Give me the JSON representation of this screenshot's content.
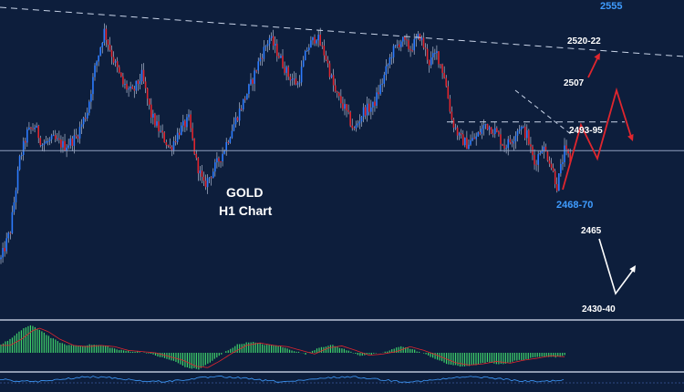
{
  "chart_data": {
    "type": "candlestick",
    "instrument": "GOLD",
    "timeframe": "H1 Chart",
    "colors": {
      "background": "#0d1e3c",
      "bull": "#2d7cff",
      "bear": "#e0262e",
      "wick": "#c9d4e8",
      "level_line": "#8f9fbf",
      "projection_red": "#e0262e",
      "projection_white": "#ffffff",
      "macd_hist": "#3fd36a",
      "label_blue": "#3f9cff",
      "label_white": "#ffffff"
    },
    "y_range": [
      2420,
      2560
    ],
    "close_path": [
      [
        0,
        2445
      ],
      [
        5,
        2458
      ],
      [
        10,
        2490
      ],
      [
        14,
        2502
      ],
      [
        18,
        2505
      ],
      [
        22,
        2497
      ],
      [
        28,
        2499
      ],
      [
        34,
        2496
      ],
      [
        40,
        2500
      ],
      [
        46,
        2512
      ],
      [
        50,
        2531
      ],
      [
        55,
        2548
      ],
      [
        60,
        2535
      ],
      [
        65,
        2524
      ],
      [
        70,
        2520
      ],
      [
        75,
        2528
      ],
      [
        80,
        2510
      ],
      [
        85,
        2502
      ],
      [
        90,
        2495
      ],
      [
        95,
        2503
      ],
      [
        100,
        2508
      ],
      [
        104,
        2489
      ],
      [
        108,
        2478
      ],
      [
        113,
        2485
      ],
      [
        118,
        2493
      ],
      [
        123,
        2504
      ],
      [
        128,
        2514
      ],
      [
        133,
        2524
      ],
      [
        138,
        2536
      ],
      [
        143,
        2545
      ],
      [
        148,
        2537
      ],
      [
        153,
        2528
      ],
      [
        158,
        2524
      ],
      [
        163,
        2540
      ],
      [
        168,
        2546
      ],
      [
        173,
        2536
      ],
      [
        178,
        2520
      ],
      [
        183,
        2513
      ],
      [
        188,
        2503
      ],
      [
        193,
        2512
      ],
      [
        198,
        2514
      ],
      [
        203,
        2525
      ],
      [
        208,
        2538
      ],
      [
        213,
        2544
      ],
      [
        218,
        2540
      ],
      [
        223,
        2546
      ],
      [
        228,
        2534
      ],
      [
        232,
        2538
      ],
      [
        236,
        2528
      ],
      [
        240,
        2508
      ],
      [
        244,
        2500
      ],
      [
        248,
        2497
      ],
      [
        253,
        2500
      ],
      [
        258,
        2506
      ],
      [
        263,
        2503
      ],
      [
        268,
        2496
      ],
      [
        272,
        2499
      ],
      [
        276,
        2505
      ],
      [
        280,
        2501
      ],
      [
        284,
        2488
      ],
      [
        288,
        2496
      ],
      [
        292,
        2490
      ],
      [
        296,
        2478
      ],
      [
        300,
        2494
      ],
      [
        303,
        2490
      ]
    ],
    "macd_hist": [
      [
        0,
        0.3
      ],
      [
        5,
        0.55
      ],
      [
        10,
        0.9
      ],
      [
        13,
        1.0
      ],
      [
        17,
        0.85
      ],
      [
        22,
        0.55
      ],
      [
        28,
        0.3
      ],
      [
        34,
        0.25
      ],
      [
        40,
        0.3
      ],
      [
        46,
        0.25
      ],
      [
        52,
        0.1
      ],
      [
        58,
        0.05
      ],
      [
        64,
        0.0
      ],
      [
        70,
        -0.15
      ],
      [
        76,
        -0.3
      ],
      [
        82,
        -0.55
      ],
      [
        87,
        -0.6
      ],
      [
        92,
        -0.35
      ],
      [
        98,
        0.0
      ],
      [
        104,
        0.3
      ],
      [
        110,
        0.4
      ],
      [
        116,
        0.3
      ],
      [
        122,
        0.25
      ],
      [
        128,
        0.1
      ],
      [
        134,
        -0.05
      ],
      [
        140,
        0.2
      ],
      [
        146,
        0.28
      ],
      [
        152,
        0.1
      ],
      [
        158,
        -0.1
      ],
      [
        164,
        -0.05
      ],
      [
        170,
        0.05
      ],
      [
        176,
        0.25
      ],
      [
        182,
        0.1
      ],
      [
        188,
        -0.1
      ],
      [
        196,
        -0.4
      ],
      [
        202,
        -0.5
      ],
      [
        208,
        -0.45
      ],
      [
        214,
        -0.35
      ],
      [
        220,
        -0.42
      ],
      [
        226,
        -0.3
      ],
      [
        232,
        -0.22
      ],
      [
        238,
        -0.12
      ],
      [
        244,
        -0.16
      ],
      [
        248,
        -0.1
      ]
    ],
    "levels": [
      {
        "label": "2555",
        "value": 2555,
        "style": "none",
        "color": "blue"
      },
      {
        "label": "2520-22",
        "value": 2521,
        "style": "trend-dashed",
        "color": "white"
      },
      {
        "label": "2507",
        "value": 2507,
        "style": "dashed",
        "color": "white"
      },
      {
        "label": "2493-95",
        "value": 2494,
        "style": "solid",
        "color": "white"
      },
      {
        "label": "2468-70",
        "value": 2469,
        "style": "none",
        "color": "blue"
      },
      {
        "label": "2465",
        "value": 2465,
        "style": "none",
        "color": "white"
      },
      {
        "label": "2430-40",
        "value": 2435,
        "style": "none",
        "color": "white"
      }
    ],
    "annotations": {
      "title_line1": "GOLD",
      "title_line2": "H1 Chart"
    }
  }
}
